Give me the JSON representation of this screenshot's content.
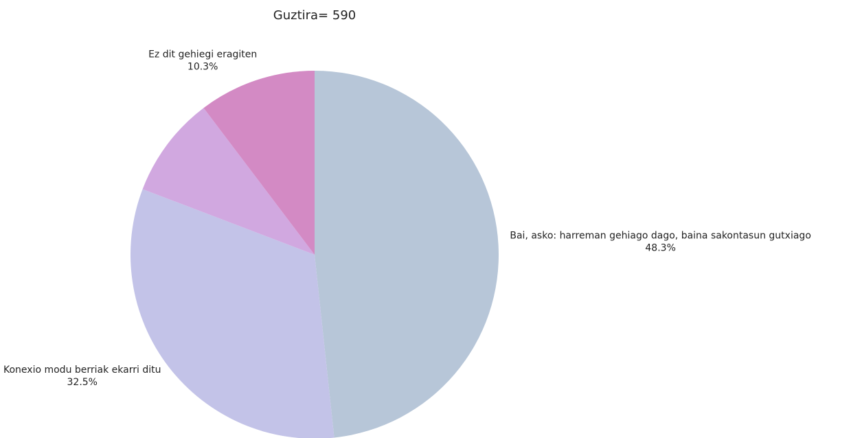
{
  "chart_data": {
    "type": "pie",
    "title": "Guztira= 590",
    "categories": [
      "Bai, asko: harreman gehiago dago, baina sakontasun gutxiago",
      "Konexio modu berriak ekarri ditu",
      null,
      "Ez dit gehiegi eragiten"
    ],
    "values": [
      48.3,
      32.5,
      8.9,
      10.3
    ],
    "value_labels": [
      "48.3%",
      "32.5%",
      null,
      "10.3%"
    ],
    "colors": [
      "#b7c6d8",
      "#c3c3e8",
      "#d1a8e0",
      "#d38ac4"
    ]
  }
}
